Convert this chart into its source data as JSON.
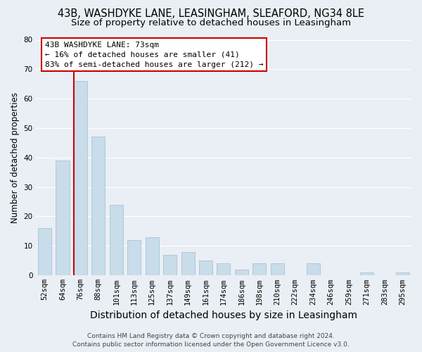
{
  "title": "43B, WASHDYKE LANE, LEASINGHAM, SLEAFORD, NG34 8LE",
  "subtitle": "Size of property relative to detached houses in Leasingham",
  "xlabel": "Distribution of detached houses by size in Leasingham",
  "ylabel": "Number of detached properties",
  "bar_labels": [
    "52sqm",
    "64sqm",
    "76sqm",
    "88sqm",
    "101sqm",
    "113sqm",
    "125sqm",
    "137sqm",
    "149sqm",
    "161sqm",
    "174sqm",
    "186sqm",
    "198sqm",
    "210sqm",
    "222sqm",
    "234sqm",
    "246sqm",
    "259sqm",
    "271sqm",
    "283sqm",
    "295sqm"
  ],
  "bar_values": [
    16,
    39,
    66,
    47,
    24,
    12,
    13,
    7,
    8,
    5,
    4,
    2,
    4,
    4,
    0,
    4,
    0,
    0,
    1,
    0,
    1
  ],
  "bar_color": "#c8dcea",
  "bar_edge_color": "#a0bcd0",
  "vline_color": "#cc0000",
  "annotation_lines": [
    "43B WASHDYKE LANE: 73sqm",
    "← 16% of detached houses are smaller (41)",
    "83% of semi-detached houses are larger (212) →"
  ],
  "annotation_box_color": "#ffffff",
  "annotation_box_edgecolor": "#cc0000",
  "ylim": [
    0,
    80
  ],
  "yticks": [
    0,
    10,
    20,
    30,
    40,
    50,
    60,
    70,
    80
  ],
  "footer_line1": "Contains HM Land Registry data © Crown copyright and database right 2024.",
  "footer_line2": "Contains public sector information licensed under the Open Government Licence v3.0.",
  "bg_color": "#eaeff5",
  "plot_bg_color": "#eaeff5",
  "grid_color": "#ffffff",
  "title_fontsize": 10.5,
  "subtitle_fontsize": 9.5,
  "xlabel_fontsize": 10,
  "ylabel_fontsize": 8.5,
  "tick_fontsize": 7.5,
  "footer_fontsize": 6.5,
  "annotation_fontsize": 8
}
